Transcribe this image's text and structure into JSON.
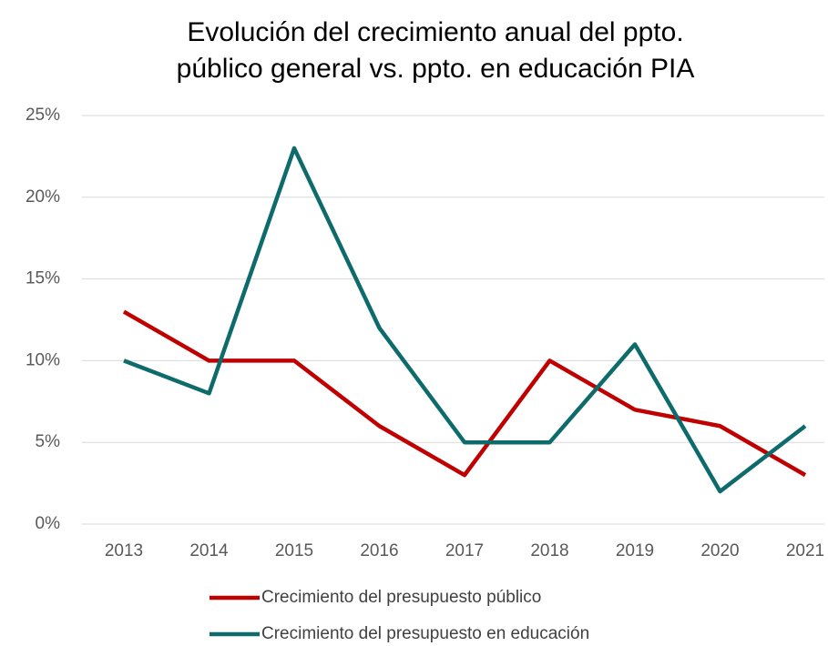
{
  "chart_data": {
    "type": "line",
    "title": [
      "Evolución del crecimiento anual del ppto.",
      "público general vs. ppto. en educación PIA"
    ],
    "categories": [
      "2013",
      "2014",
      "2015",
      "2016",
      "2017",
      "2018",
      "2019",
      "2020",
      "2021"
    ],
    "series": [
      {
        "name": "Crecimiento del presupuesto público",
        "color": "#c00000",
        "values": [
          13,
          10,
          10,
          6,
          3,
          10,
          7,
          6,
          3
        ]
      },
      {
        "name": "Crecimiento del presupuesto en educación",
        "color": "#0e6b6b",
        "values": [
          10,
          8,
          23,
          12,
          5,
          5,
          11,
          2,
          6
        ]
      }
    ],
    "ylim": [
      0,
      25
    ],
    "yticks": [
      {
        "value": 0,
        "label": "0%"
      },
      {
        "value": 5,
        "label": "5%"
      },
      {
        "value": 10,
        "label": "10%"
      },
      {
        "value": 15,
        "label": "15%"
      },
      {
        "value": 20,
        "label": "20%"
      },
      {
        "value": 25,
        "label": "25%"
      }
    ],
    "grid": true
  }
}
